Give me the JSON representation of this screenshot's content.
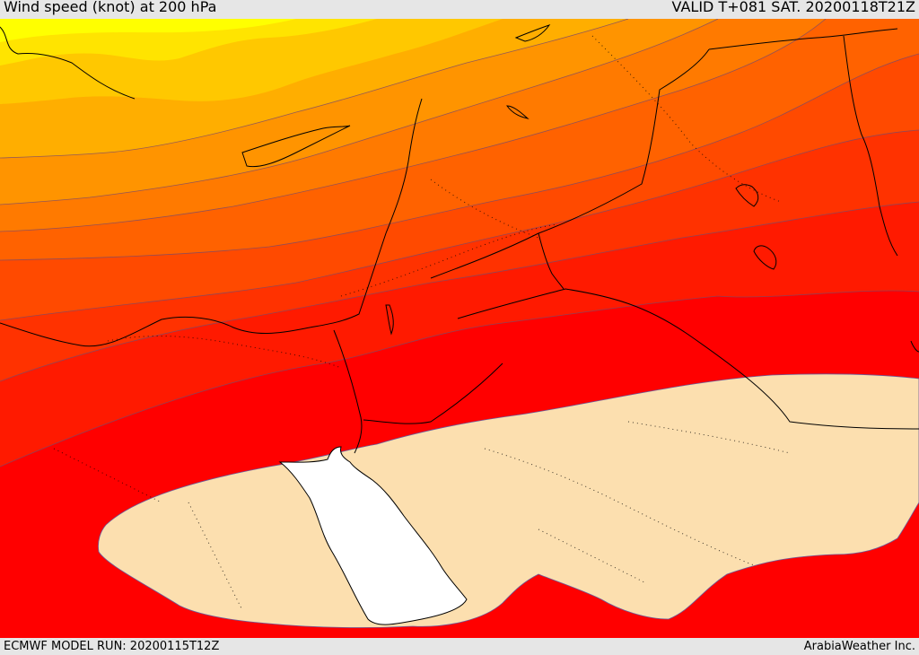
{
  "header": {
    "title": "Wind speed (knot) at 200 hPa",
    "valid": "VALID T+081 SAT. 20200118T21Z"
  },
  "footer": {
    "model_run": "ECMWF MODEL RUN: 20200115T12Z",
    "provider": "ArabiaWeather Inc."
  },
  "map": {
    "fill_colors": [
      "#ffff00",
      "#ffe400",
      "#ffc800",
      "#ffae00",
      "#ff9400",
      "#ff7a00",
      "#ff6200",
      "#ff4a00",
      "#ff3200",
      "#ff1a00",
      "#ff0000",
      "#fcdfaf",
      "#ffffff"
    ]
  }
}
